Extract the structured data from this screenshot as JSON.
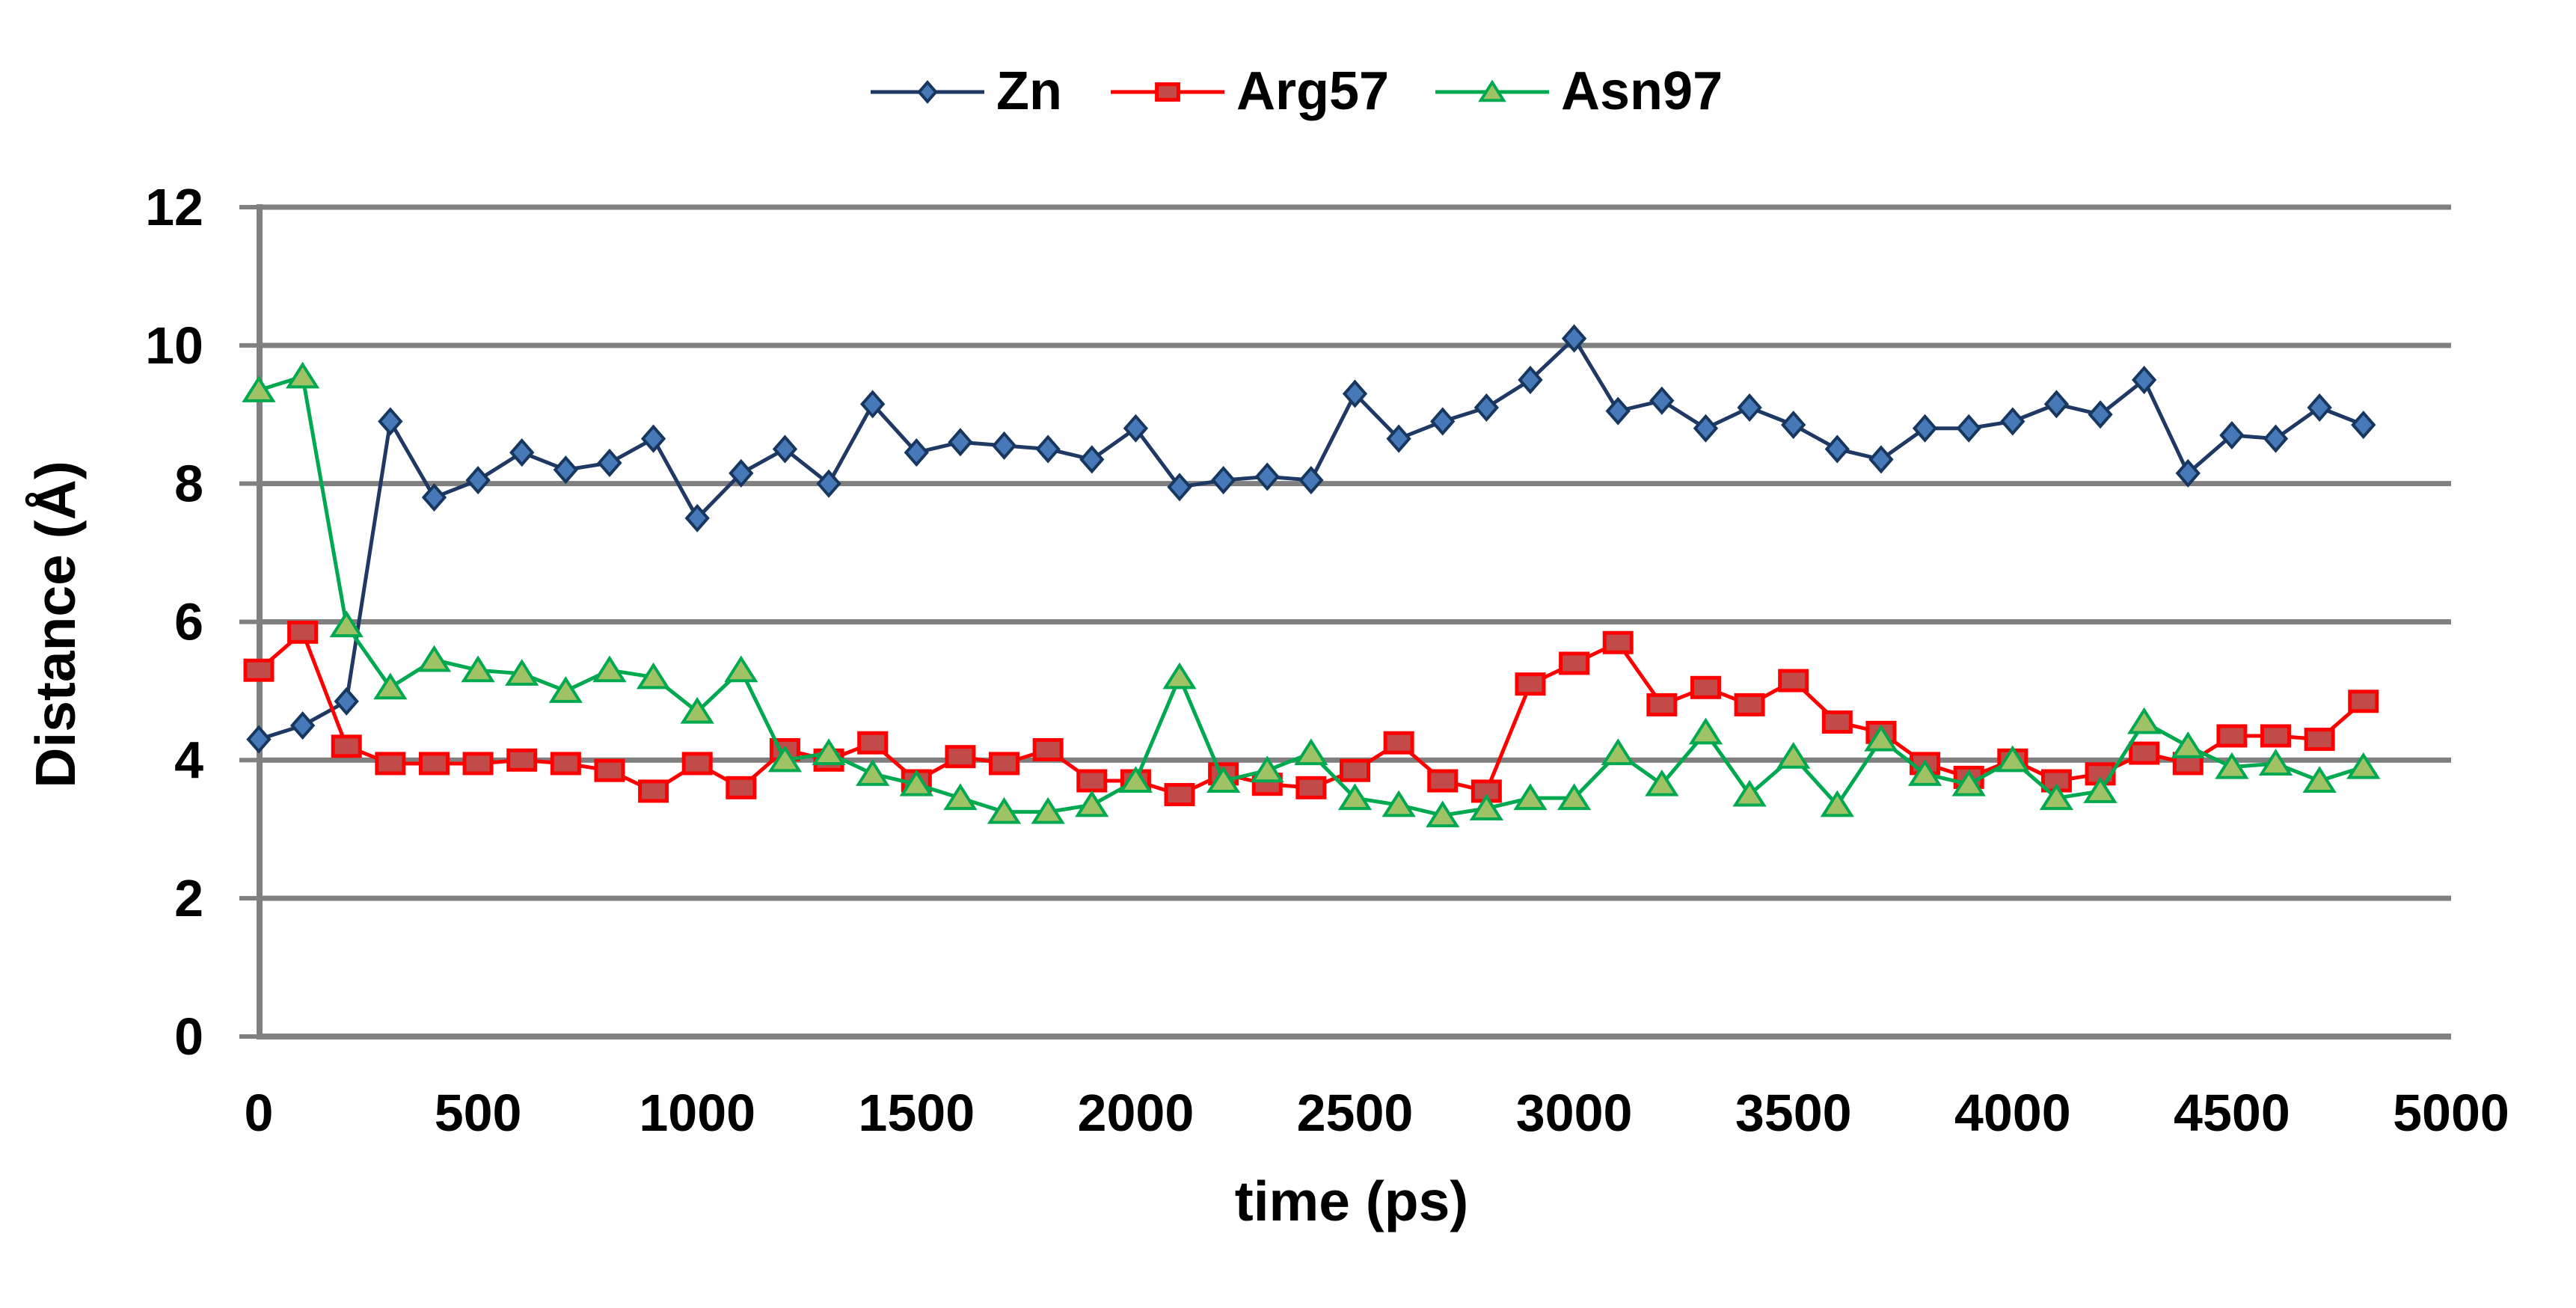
{
  "chart_data": {
    "type": "line",
    "title": "",
    "xlabel": "time (ps)",
    "ylabel": "Distance (Å)",
    "xlim": [
      0,
      5000
    ],
    "ylim": [
      0,
      12
    ],
    "x_ticks": [
      0,
      500,
      1000,
      1500,
      2000,
      2500,
      3000,
      3500,
      4000,
      4500,
      5000
    ],
    "y_ticks": [
      0,
      2,
      4,
      6,
      8,
      10,
      12
    ],
    "grid": {
      "on": true,
      "color": "#808080",
      "axis_color": "#808080"
    },
    "legend": {
      "position": "top-center",
      "entries": [
        "Zn",
        "Arg57",
        "Asn97"
      ]
    },
    "x": [
      0,
      100,
      200,
      300,
      400,
      500,
      600,
      700,
      800,
      900,
      1000,
      1100,
      1200,
      1300,
      1400,
      1500,
      1600,
      1700,
      1800,
      1900,
      2000,
      2100,
      2200,
      2300,
      2400,
      2500,
      2600,
      2700,
      2800,
      2900,
      3000,
      3100,
      3200,
      3300,
      3400,
      3500,
      3600,
      3700,
      3800,
      3900,
      4000,
      4100,
      4200,
      4300,
      4400,
      4500,
      4600,
      4700,
      4800
    ],
    "series": [
      {
        "name": "Zn",
        "marker": "diamond",
        "line_color": "#1F3864",
        "marker_fill": "#4779B8",
        "marker_stroke": "#17375E",
        "values": [
          4.3,
          4.5,
          4.85,
          8.9,
          7.8,
          8.05,
          8.45,
          8.2,
          8.3,
          8.65,
          7.5,
          8.15,
          8.5,
          8.0,
          9.15,
          8.45,
          8.6,
          8.55,
          8.5,
          8.35,
          8.8,
          7.95,
          8.05,
          8.1,
          8.05,
          9.3,
          8.65,
          8.9,
          9.1,
          9.5,
          10.1,
          9.05,
          9.2,
          8.8,
          9.1,
          8.85,
          8.5,
          8.35,
          8.8,
          8.8,
          8.9,
          9.15,
          9.0,
          9.5,
          8.15,
          8.7,
          8.65,
          9.1,
          8.85
        ]
      },
      {
        "name": "Arg57",
        "marker": "square",
        "line_color": "#FF0000",
        "marker_fill": "#C04B48",
        "marker_stroke": "#FF0000",
        "values": [
          5.3,
          5.85,
          4.2,
          3.95,
          3.95,
          3.95,
          4.0,
          3.95,
          3.85,
          3.55,
          3.95,
          3.6,
          4.15,
          4.0,
          4.25,
          3.7,
          4.05,
          3.95,
          4.15,
          3.7,
          3.7,
          3.5,
          3.8,
          3.65,
          3.6,
          3.85,
          4.25,
          3.7,
          3.55,
          5.1,
          5.4,
          5.7,
          4.8,
          5.05,
          4.8,
          5.15,
          4.55,
          4.4,
          3.95,
          3.75,
          4.0,
          3.7,
          3.8,
          4.1,
          3.95,
          4.35,
          4.35,
          4.3,
          4.85
        ]
      },
      {
        "name": "Asn97",
        "marker": "triangle",
        "line_color": "#00A84F",
        "marker_fill": "#9FC364",
        "marker_stroke": "#00A84F",
        "values": [
          9.35,
          9.55,
          5.95,
          5.05,
          5.45,
          5.3,
          5.25,
          5.0,
          5.3,
          5.2,
          4.7,
          5.3,
          4.0,
          4.1,
          3.8,
          3.65,
          3.45,
          3.25,
          3.25,
          3.35,
          3.7,
          5.2,
          3.7,
          3.85,
          4.1,
          3.45,
          3.35,
          3.2,
          3.3,
          3.45,
          3.45,
          4.1,
          3.65,
          4.4,
          3.5,
          4.05,
          3.35,
          4.3,
          3.8,
          3.65,
          4.0,
          3.45,
          3.55,
          4.55,
          4.2,
          3.9,
          3.95,
          3.7,
          3.9
        ]
      }
    ]
  }
}
